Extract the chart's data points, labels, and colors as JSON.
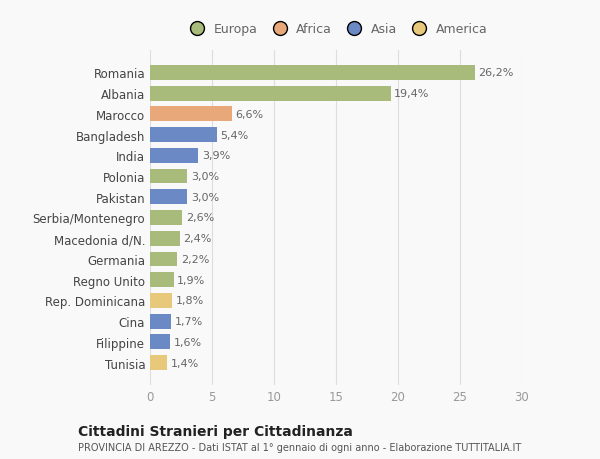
{
  "categories": [
    "Tunisia",
    "Filippine",
    "Cina",
    "Rep. Dominicana",
    "Regno Unito",
    "Germania",
    "Macedonia d/N.",
    "Serbia/Montenegro",
    "Pakistan",
    "Polonia",
    "India",
    "Bangladesh",
    "Marocco",
    "Albania",
    "Romania"
  ],
  "values": [
    1.4,
    1.6,
    1.7,
    1.8,
    1.9,
    2.2,
    2.4,
    2.6,
    3.0,
    3.0,
    3.9,
    5.4,
    6.6,
    19.4,
    26.2
  ],
  "labels": [
    "1,4%",
    "1,6%",
    "1,7%",
    "1,8%",
    "1,9%",
    "2,2%",
    "2,4%",
    "2,6%",
    "3,0%",
    "3,0%",
    "3,9%",
    "5,4%",
    "6,6%",
    "19,4%",
    "26,2%"
  ],
  "colors": [
    "#e8c87a",
    "#6b89c4",
    "#6b89c4",
    "#e8c87a",
    "#a8bb7a",
    "#a8bb7a",
    "#a8bb7a",
    "#a8bb7a",
    "#6b89c4",
    "#a8bb7a",
    "#6b89c4",
    "#6b89c4",
    "#e8a87a",
    "#a8bb7a",
    "#a8bb7a"
  ],
  "legend_labels": [
    "Europa",
    "Africa",
    "Asia",
    "America"
  ],
  "legend_colors": [
    "#a8bb7a",
    "#e8a87a",
    "#6b89c4",
    "#e8c87a"
  ],
  "title": "Cittadini Stranieri per Cittadinanza",
  "subtitle": "PROVINCIA DI AREZZO - Dati ISTAT al 1° gennaio di ogni anno - Elaborazione TUTTITALIA.IT",
  "xlim": [
    0,
    30
  ],
  "xticks": [
    0,
    5,
    10,
    15,
    20,
    25,
    30
  ],
  "bg_color": "#f9f9f9",
  "bar_height": 0.72
}
